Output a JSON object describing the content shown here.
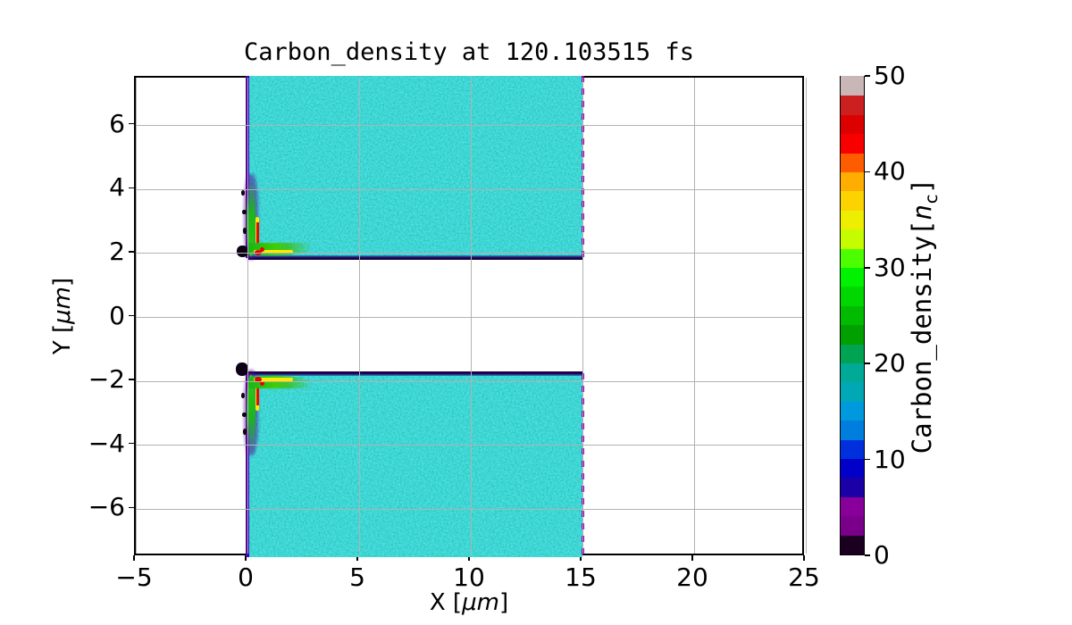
{
  "title": "Carbon_density at 120.103515 fs",
  "axes": {
    "xlabel_pre": "X [",
    "xlabel_unit": "μm",
    "xlabel_post": "]",
    "ylabel_pre": "Y [",
    "ylabel_unit": "μm",
    "ylabel_post": "]",
    "xlim": [
      -5,
      25
    ],
    "ylim": [
      -7.5,
      7.5
    ],
    "xticks": [
      -5,
      0,
      5,
      10,
      15,
      20,
      25
    ],
    "xtick_labels": [
      "−5",
      "0",
      "5",
      "10",
      "15",
      "20",
      "25"
    ],
    "yticks": [
      6,
      4,
      2,
      0,
      -2,
      -4,
      -6
    ],
    "ytick_labels": [
      "6",
      "4",
      "2",
      "0",
      "−2",
      "−4",
      "−6"
    ],
    "grid": true,
    "grid_color": "#b2b2b2",
    "spine_color": "#000000"
  },
  "colorbar": {
    "label_pre": "Carbon_density[",
    "label_var": "n",
    "label_sub": "c",
    "label_post": "]",
    "min": 0,
    "max": 50,
    "ticks": [
      0,
      10,
      20,
      30,
      40,
      50
    ],
    "tick_labels": [
      "0",
      "10",
      "20",
      "30",
      "40",
      "50"
    ],
    "colormap": "nipy_spectral",
    "band_colors_bottom_to_top": [
      "#1c0022",
      "#7a008b",
      "#880099",
      "#1b00a7",
      "#0000c9",
      "#0030dd",
      "#007edd",
      "#0099dd",
      "#00a7b4",
      "#00aa96",
      "#00a352",
      "#00a000",
      "#00bb00",
      "#00d600",
      "#00f200",
      "#4bff00",
      "#c5fc00",
      "#eeee00",
      "#fcd300",
      "#ffad00",
      "#ff5c00",
      "#f80000",
      "#dd0000",
      "#cc2020",
      "#c9b6b6"
    ]
  },
  "chart_data": {
    "type": "heatmap",
    "title": "Carbon_density at 120.103515 fs",
    "time_fs": 120.103515,
    "xlabel": "X [μm]",
    "ylabel": "Y [μm]",
    "xlim": [
      -5,
      25
    ],
    "ylim": [
      -7.5,
      7.5
    ],
    "colorbar_label": "Carbon_density[n_c]",
    "value_range": [
      0,
      50
    ],
    "colormap": "nipy_spectral",
    "grid": true,
    "regions": [
      {
        "name": "upper_carbon_slab",
        "x_um": [
          0,
          15
        ],
        "y_um": [
          1.85,
          7.5
        ],
        "approx_density_nc": [
          14,
          22
        ],
        "appearance": "uniform teal slab with fine blue/green speckle noise"
      },
      {
        "name": "lower_carbon_slab",
        "x_um": [
          0,
          15
        ],
        "y_um": [
          -7.5,
          -1.8
        ],
        "approx_density_nc": [
          14,
          22
        ],
        "appearance": "uniform teal slab with fine blue/green speckle noise"
      },
      {
        "name": "vacuum_channel_between_slabs",
        "x_um": [
          0,
          15
        ],
        "y_um": [
          -1.8,
          1.85
        ],
        "approx_density_nc": 0
      },
      {
        "name": "vacuum_left_of_target",
        "x_um": [
          -5,
          0
        ],
        "y_um": [
          -7.5,
          7.5
        ],
        "approx_density_nc": 0
      },
      {
        "name": "vacuum_right_of_target",
        "x_um": [
          15,
          25
        ],
        "y_um": [
          -7.5,
          7.5
        ],
        "approx_density_nc": 0
      },
      {
        "name": "upper_slab_front_corner_compression",
        "x_um": [
          -0.4,
          2.8
        ],
        "y_um": [
          1.7,
          4.2
        ],
        "approx_density_nc": [
          0,
          50
        ],
        "appearance": "black/purple blow-off, green-yellow fringe, red hot spots up to ~50 nc"
      },
      {
        "name": "lower_slab_front_corner_compression",
        "x_um": [
          -0.4,
          2.8
        ],
        "y_um": [
          -3.7,
          -1.6
        ],
        "approx_density_nc": [
          0,
          50
        ],
        "appearance": "black/purple blow-off, green-yellow fringe, red hot spots up to ~50 nc"
      }
    ],
    "slab_left_edge": {
      "x_um": 0,
      "appearance": "solid indigo-purple vertical line"
    },
    "slab_right_edge": {
      "x_um": 15,
      "appearance": "dashed purple vertical line"
    },
    "inner_surface_edges": {
      "y_um": [
        1.85,
        -1.8
      ],
      "appearance": "thin dark-purple horizontal lines"
    }
  }
}
